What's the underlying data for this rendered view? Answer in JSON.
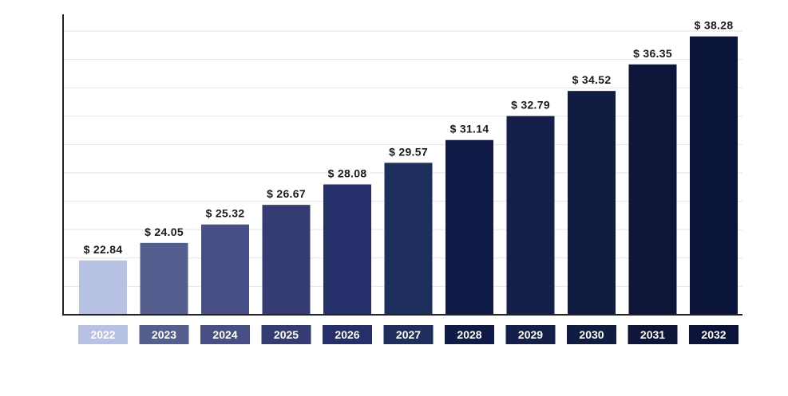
{
  "chart_data": {
    "type": "bar",
    "categories": [
      "2022",
      "2023",
      "2024",
      "2025",
      "2026",
      "2027",
      "2028",
      "2029",
      "2030",
      "2031",
      "2032"
    ],
    "values": [
      22.84,
      24.05,
      25.32,
      26.67,
      28.08,
      29.57,
      31.14,
      32.79,
      34.52,
      36.35,
      38.28
    ],
    "value_labels": [
      "$ 22.84",
      "$ 24.05",
      "$ 25.32",
      "$ 26.67",
      "$ 28.08",
      "$ 29.57",
      "$ 31.14",
      "$ 32.79",
      "$ 34.52",
      "$ 36.35",
      "$ 38.28"
    ],
    "title": "",
    "xlabel": "",
    "ylabel": "",
    "ylim": [
      19.1,
      39.8
    ],
    "grid": true,
    "legend": "none",
    "colors": [
      "#b7c1e4",
      "#555f8f",
      "#474f86",
      "#343c73",
      "#25306a",
      "#1e2f5e",
      "#101b48",
      "#14204a",
      "#111c42",
      "#0d1638",
      "#0a1339"
    ]
  }
}
